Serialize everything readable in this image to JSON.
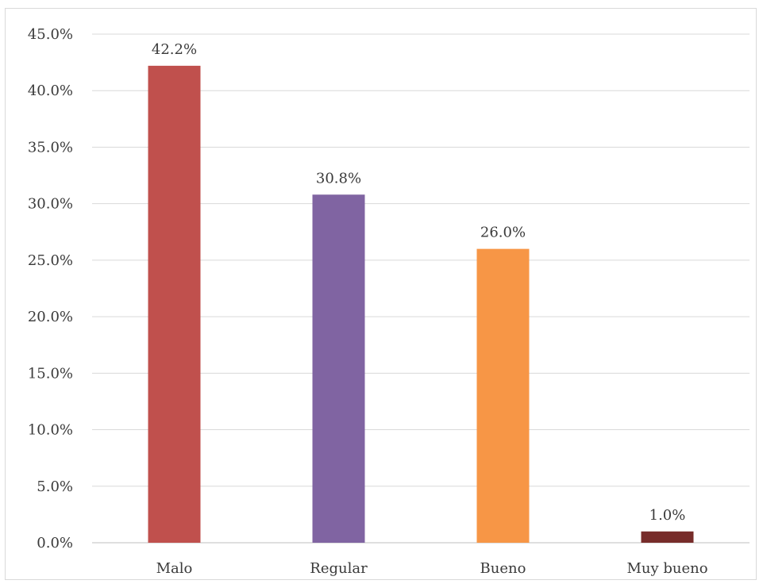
{
  "chart_data": {
    "type": "bar",
    "categories": [
      "Malo",
      "Regular",
      "Bueno",
      "Muy bueno"
    ],
    "values": [
      42.2,
      30.8,
      26.0,
      1.0
    ],
    "data_labels": [
      "42.2%",
      "30.8%",
      "26.0%",
      "1.0%"
    ],
    "colors": [
      "#c0504d",
      "#8064a2",
      "#f79646",
      "#772c2a"
    ],
    "y_ticks": [
      {
        "value": 0,
        "label": "0.0%"
      },
      {
        "value": 5,
        "label": "5.0%"
      },
      {
        "value": 10,
        "label": "10.0%"
      },
      {
        "value": 15,
        "label": "15.0%"
      },
      {
        "value": 20,
        "label": "20.0%"
      },
      {
        "value": 25,
        "label": "25.0%"
      },
      {
        "value": 30,
        "label": "30.0%"
      },
      {
        "value": 35,
        "label": "35.0%"
      },
      {
        "value": 40,
        "label": "40.0%"
      },
      {
        "value": 45,
        "label": "45.0%"
      }
    ],
    "ylim": [
      0,
      45
    ],
    "grid": true,
    "title": "",
    "xlabel": "",
    "ylabel": ""
  }
}
